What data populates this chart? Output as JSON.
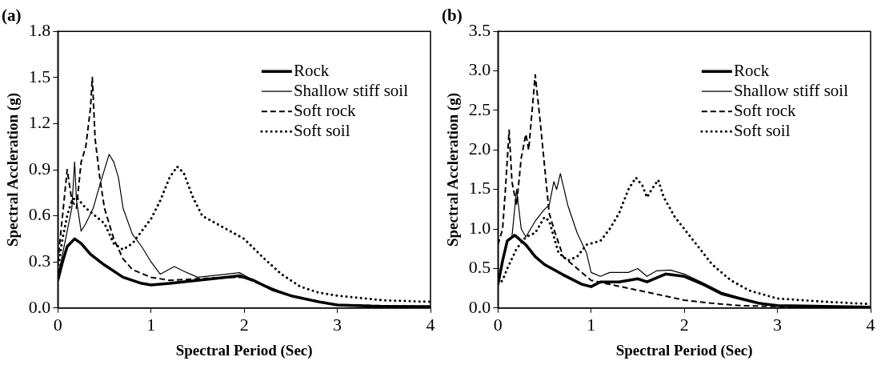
{
  "chart_data": [
    {
      "type": "line",
      "title": "(a)",
      "xlabel": "Spectral Period (Sec)",
      "ylabel": "Spectral Accleration (g)",
      "xlim": [
        0,
        4
      ],
      "xticks": [
        0,
        1,
        2,
        3,
        4
      ],
      "ylim": [
        0,
        1.8
      ],
      "yticks": [
        {
          "value": 0,
          "label": "0.0"
        },
        0.3,
        0.6,
        0.9,
        1.2,
        1.5,
        1.8
      ],
      "grid": false,
      "legend": "top right",
      "marker": "none",
      "series": [
        {
          "name": "Rock",
          "color": "#000000",
          "line_style": "solid",
          "x": [
            0,
            0.05,
            0.1,
            0.18,
            0.25,
            0.35,
            0.5,
            0.7,
            0.9,
            1.0,
            1.2,
            1.5,
            1.8,
            1.95,
            2.1,
            2.3,
            2.5,
            2.8,
            3.0,
            3.5,
            4.0
          ],
          "values": [
            0.18,
            0.3,
            0.4,
            0.45,
            0.42,
            0.35,
            0.28,
            0.2,
            0.16,
            0.15,
            0.16,
            0.18,
            0.2,
            0.21,
            0.18,
            0.12,
            0.08,
            0.04,
            0.02,
            0.01,
            0.01
          ]
        },
        {
          "name": "Shallow stiff soil",
          "color": "#000000",
          "line_style": "solid",
          "x": [
            0,
            0.05,
            0.1,
            0.15,
            0.18,
            0.2,
            0.25,
            0.3,
            0.38,
            0.45,
            0.55,
            0.6,
            0.65,
            0.7,
            0.8,
            0.9,
            1.0,
            1.1,
            1.25,
            1.35,
            1.5,
            1.8,
            1.95,
            2.1,
            2.5,
            3.0,
            4.0
          ],
          "values": [
            0.2,
            0.35,
            0.5,
            0.65,
            0.95,
            0.7,
            0.5,
            0.55,
            0.65,
            0.8,
            1.0,
            0.95,
            0.85,
            0.65,
            0.48,
            0.4,
            0.3,
            0.22,
            0.27,
            0.24,
            0.2,
            0.22,
            0.23,
            0.18,
            0.08,
            0.02,
            0.01
          ]
        },
        {
          "name": "Soft rock",
          "color": "#000000",
          "line_style": "dashed",
          "x": [
            0,
            0.05,
            0.1,
            0.15,
            0.2,
            0.25,
            0.3,
            0.35,
            0.37,
            0.4,
            0.45,
            0.5,
            0.6,
            0.7,
            0.8,
            1.0,
            1.2,
            1.5,
            1.8,
            2.0,
            2.3,
            2.5,
            3.0,
            4.0
          ],
          "values": [
            0.3,
            0.6,
            0.9,
            0.7,
            0.65,
            0.95,
            1.05,
            1.3,
            1.5,
            1.1,
            0.85,
            0.65,
            0.45,
            0.32,
            0.25,
            0.2,
            0.18,
            0.19,
            0.2,
            0.2,
            0.12,
            0.08,
            0.02,
            0.01
          ]
        },
        {
          "name": "Soft soil",
          "color": "#000000",
          "line_style": "dotted",
          "x": [
            0,
            0.05,
            0.1,
            0.15,
            0.2,
            0.3,
            0.4,
            0.5,
            0.6,
            0.7,
            0.8,
            0.9,
            1.0,
            1.1,
            1.2,
            1.28,
            1.35,
            1.45,
            1.55,
            1.7,
            1.85,
            2.0,
            2.2,
            2.4,
            2.6,
            2.8,
            3.0,
            3.5,
            4.0
          ],
          "values": [
            0.25,
            0.45,
            0.6,
            0.7,
            0.72,
            0.65,
            0.6,
            0.55,
            0.42,
            0.38,
            0.42,
            0.5,
            0.58,
            0.7,
            0.85,
            0.92,
            0.88,
            0.72,
            0.6,
            0.55,
            0.5,
            0.45,
            0.33,
            0.22,
            0.14,
            0.1,
            0.08,
            0.05,
            0.04
          ]
        }
      ]
    },
    {
      "type": "line",
      "title": "(b)",
      "xlabel": "Spectral Period (Sec)",
      "ylabel": "Spectral Accleration (g)",
      "xlim": [
        0,
        4
      ],
      "xticks": [
        0,
        1,
        2,
        3,
        4
      ],
      "ylim": [
        0,
        3.5
      ],
      "yticks": [
        {
          "value": 0,
          "label": "0.0"
        },
        {
          "value": 0.5,
          "label": "0.5"
        },
        {
          "value": 1,
          "label": "1.0"
        },
        {
          "value": 1.5,
          "label": "1.5"
        },
        {
          "value": 2,
          "label": "2.0"
        },
        {
          "value": 2.5,
          "label": "2.5"
        },
        {
          "value": 3,
          "label": "3.0"
        },
        {
          "value": 3.5,
          "label": "3.5"
        }
      ],
      "grid": false,
      "legend": "top right",
      "marker": "none",
      "series": [
        {
          "name": "Rock",
          "color": "#000000",
          "line_style": "solid",
          "x": [
            0,
            0.05,
            0.1,
            0.18,
            0.3,
            0.4,
            0.5,
            0.7,
            0.9,
            1.0,
            1.1,
            1.3,
            1.5,
            1.6,
            1.8,
            2.0,
            2.2,
            2.4,
            2.6,
            2.8,
            3.0,
            3.5,
            4.0
          ],
          "values": [
            0.3,
            0.6,
            0.85,
            0.92,
            0.8,
            0.65,
            0.55,
            0.42,
            0.3,
            0.27,
            0.33,
            0.33,
            0.37,
            0.33,
            0.43,
            0.4,
            0.3,
            0.18,
            0.12,
            0.06,
            0.03,
            0.02,
            0.01
          ]
        },
        {
          "name": "Shallow stiff soil",
          "color": "#000000",
          "line_style": "solid",
          "x": [
            0,
            0.1,
            0.15,
            0.2,
            0.25,
            0.3,
            0.4,
            0.5,
            0.55,
            0.6,
            0.63,
            0.67,
            0.75,
            0.85,
            0.95,
            1.0,
            1.1,
            1.2,
            1.4,
            1.5,
            1.6,
            1.7,
            1.85,
            2.0,
            2.2,
            2.4,
            2.6,
            2.8,
            3.0,
            4.0
          ],
          "values": [
            0.3,
            0.85,
            0.9,
            1.5,
            1.0,
            0.9,
            1.1,
            1.25,
            1.3,
            1.6,
            1.5,
            1.7,
            1.3,
            0.95,
            0.7,
            0.45,
            0.4,
            0.45,
            0.45,
            0.5,
            0.4,
            0.47,
            0.48,
            0.43,
            0.32,
            0.2,
            0.13,
            0.07,
            0.03,
            0.01
          ]
        },
        {
          "name": "Soft rock",
          "color": "#000000",
          "line_style": "dashed",
          "x": [
            0,
            0.05,
            0.08,
            0.12,
            0.15,
            0.2,
            0.25,
            0.3,
            0.33,
            0.4,
            0.45,
            0.5,
            0.55,
            0.6,
            0.7,
            0.8,
            0.9,
            1.0,
            1.2,
            1.4,
            1.6,
            1.8,
            2.0,
            2.3,
            2.6,
            3.0,
            4.0
          ],
          "values": [
            0.8,
            1.0,
            1.5,
            2.25,
            1.6,
            1.3,
            1.9,
            2.2,
            2.0,
            2.95,
            2.4,
            1.8,
            1.2,
            1.0,
            0.65,
            0.55,
            0.45,
            0.35,
            0.3,
            0.25,
            0.2,
            0.15,
            0.1,
            0.06,
            0.03,
            0.02,
            0.01
          ]
        },
        {
          "name": "Soft soil",
          "color": "#000000",
          "line_style": "dotted",
          "x": [
            0,
            0.05,
            0.1,
            0.2,
            0.3,
            0.4,
            0.5,
            0.55,
            0.6,
            0.65,
            0.75,
            0.85,
            0.95,
            1.1,
            1.2,
            1.3,
            1.4,
            1.48,
            1.55,
            1.6,
            1.65,
            1.72,
            1.78,
            1.9,
            2.0,
            2.1,
            2.2,
            2.3,
            2.5,
            2.7,
            3.0,
            3.5,
            4.0
          ],
          "values": [
            0.3,
            0.35,
            0.5,
            0.75,
            0.9,
            0.95,
            1.15,
            1.1,
            0.9,
            0.7,
            0.6,
            0.65,
            0.8,
            0.85,
            1.0,
            1.2,
            1.5,
            1.65,
            1.55,
            1.4,
            1.5,
            1.62,
            1.4,
            1.15,
            1.0,
            0.85,
            0.7,
            0.55,
            0.35,
            0.22,
            0.12,
            0.08,
            0.05
          ]
        }
      ]
    }
  ]
}
